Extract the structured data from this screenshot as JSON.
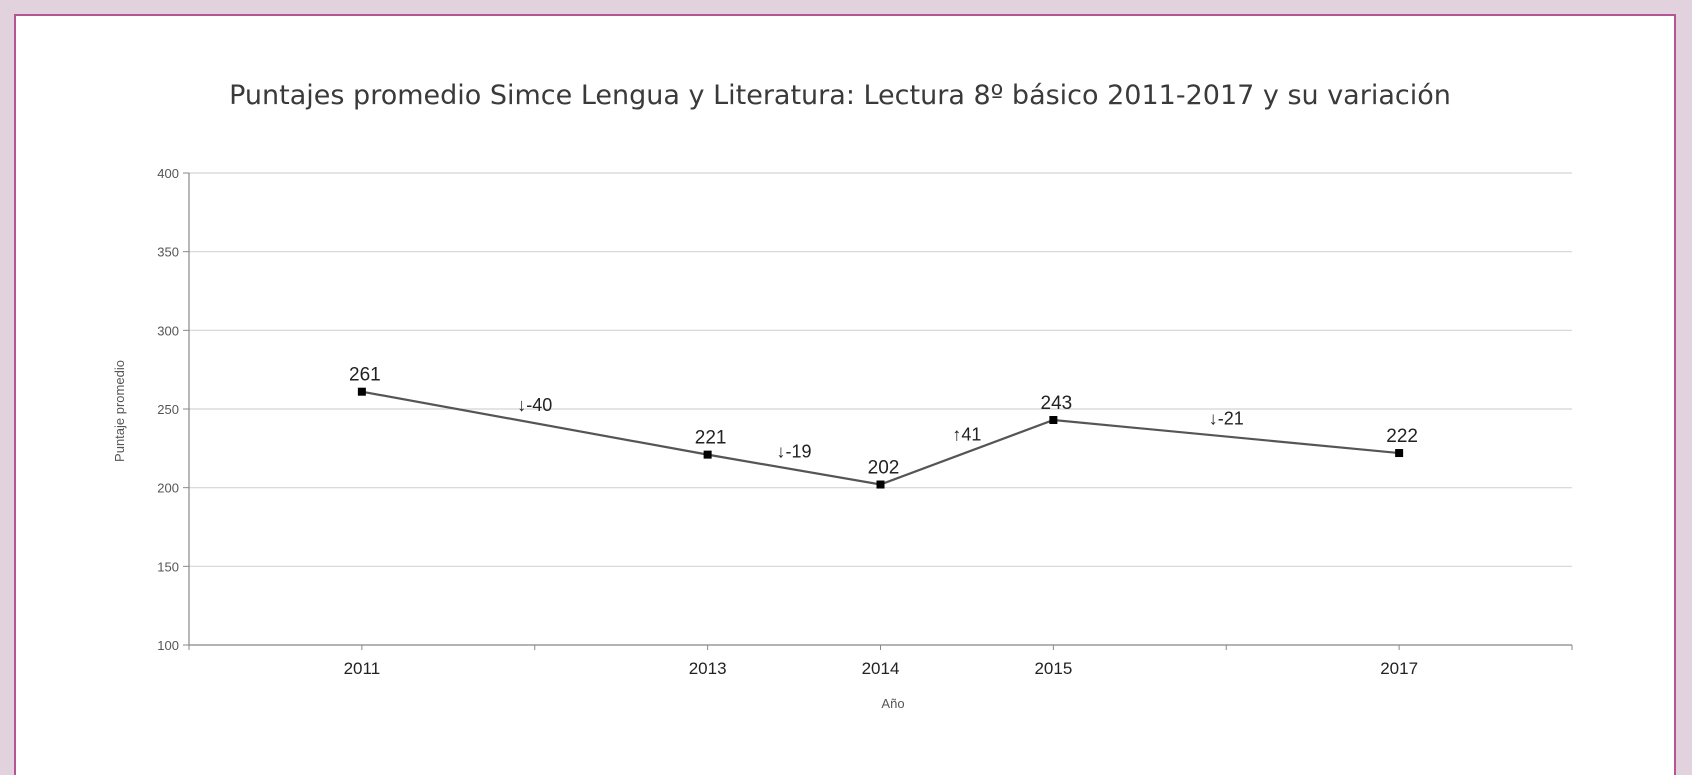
{
  "chart_data": {
    "type": "line",
    "title": "Puntajes promedio Simce Lengua y Literatura: Lectura 8º básico 2011-2017 y su variación",
    "xlabel": "Año",
    "ylabel": "Puntaje promedio",
    "x": [
      2011,
      2013,
      2014,
      2015,
      2017
    ],
    "x_tick_labels": [
      "2011",
      "2013",
      "2014",
      "2015",
      "2017"
    ],
    "series": [
      {
        "values": [
          261,
          221,
          202,
          243,
          222
        ]
      }
    ],
    "data_labels": [
      "261",
      "221",
      "202",
      "243",
      "222"
    ],
    "variation_labels": [
      "↓-40",
      "↓-19",
      "↑41",
      "↓-21"
    ],
    "ylim": [
      100,
      400
    ],
    "y_ticks": [
      100,
      150,
      200,
      250,
      300,
      350,
      400
    ],
    "grid": true,
    "legend": "none",
    "colors": {
      "line": "#555555",
      "marker": "#000000",
      "grid": "#d4d4d4",
      "frame_border": "#b55593",
      "page_background": "#e2d2de"
    }
  }
}
